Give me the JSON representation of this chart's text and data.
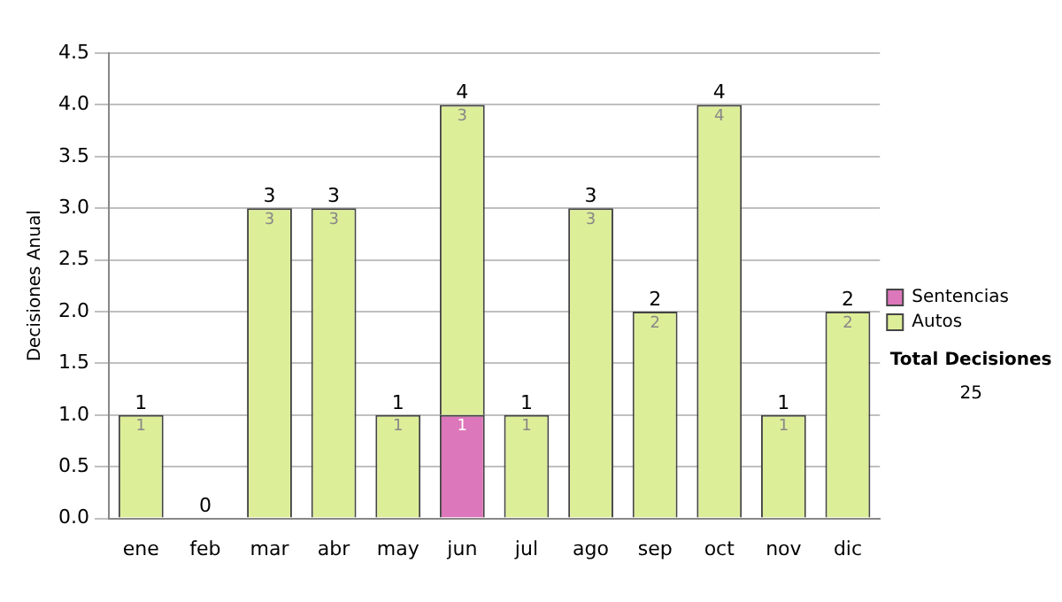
{
  "chart_data": {
    "type": "bar",
    "stacked": true,
    "ylabel": "Decisiones Anual",
    "categories": [
      "ene",
      "feb",
      "mar",
      "abr",
      "may",
      "jun",
      "jul",
      "ago",
      "sep",
      "oct",
      "nov",
      "dic"
    ],
    "series": [
      {
        "name": "Sentencias",
        "color": "#dd77bb",
        "values": [
          0,
          0,
          0,
          0,
          0,
          1,
          0,
          0,
          0,
          0,
          0,
          0
        ],
        "value_labels": [
          null,
          null,
          null,
          null,
          null,
          "1",
          null,
          null,
          null,
          null,
          null,
          null
        ]
      },
      {
        "name": "Autos",
        "color": "#ddee99",
        "values": [
          1,
          0,
          3,
          3,
          1,
          3,
          1,
          3,
          2,
          4,
          1,
          2
        ],
        "value_labels": [
          "1",
          null,
          "3",
          "3",
          "1",
          "3",
          "1",
          "3",
          "2",
          "4",
          "1",
          "2"
        ]
      }
    ],
    "totals": [
      "1",
      "0",
      "3",
      "3",
      "1",
      "4",
      "1",
      "3",
      "2",
      "4",
      "1",
      "2"
    ],
    "ylim": [
      0,
      4.5
    ],
    "yticks": [
      {
        "value": 0,
        "label": "0.0"
      },
      {
        "value": 0.5,
        "label": "0.5"
      },
      {
        "value": 1,
        "label": "1.0"
      },
      {
        "value": 1.5,
        "label": "1.5"
      },
      {
        "value": 2,
        "label": "2.0"
      },
      {
        "value": 2.5,
        "label": "2.5"
      },
      {
        "value": 3,
        "label": "3.0"
      },
      {
        "value": 3.5,
        "label": "3.5"
      },
      {
        "value": 4,
        "label": "4.0"
      },
      {
        "value": 4.5,
        "label": "4.5"
      }
    ],
    "grid": "y",
    "legend": "right",
    "annotations": [
      "Total Decisiones",
      "25"
    ]
  }
}
